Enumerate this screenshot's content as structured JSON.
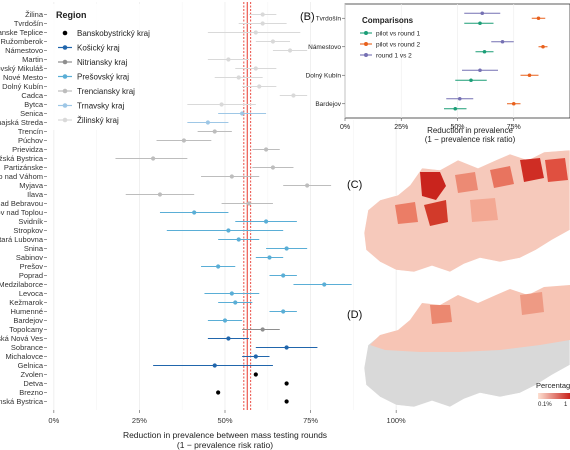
{
  "colors": {
    "Banskobystricky kraj": "#3a3a3a",
    "Košický kraj": "#2166ac",
    "Nitriansky kraj": "#8e8e8e",
    "Prešovský kraj": "#5aaed6",
    "Trenciansky kraj": "#bdbdbd",
    "Trnavsky kraj": "#9ec7e6",
    "Žilinský kraj": "#d9d9d9",
    "pilot vs round 1": "#1b9e77",
    "pilot vs round 2": "#e8601c",
    "round 1 vs 2": "#7570b3",
    "ref_line": "#e8392f"
  },
  "panel_labels": {
    "b": "(B)",
    "c": "(C)",
    "d": "(D)"
  },
  "legend_title": "Region",
  "regions": [
    "Banskobystrický kraj",
    "Košický kraj",
    "Nitriansky kraj",
    "Prešovský kraj",
    "Trenciansky kraj",
    "Trnavsky kraj",
    "Žilinský kraj"
  ],
  "map_legend": {
    "title": "Percentage",
    "ticks": [
      "0.1%",
      "1"
    ]
  },
  "chart_data": [
    {
      "type": "scatter",
      "panel": "A",
      "xlabel": "Reduction in prevalence between mass testing rounds",
      "xlabel2": "(1 − prevalence risk ratio)",
      "xlim": [
        -0.02,
        1.02
      ],
      "xticks": [
        "0%",
        "25%",
        "50%",
        "75%",
        "100%"
      ],
      "xtick_values": [
        0,
        0.25,
        0.5,
        0.75,
        1.0
      ],
      "reference_estimate": 0.565,
      "reference_ci": [
        0.555,
        0.575
      ],
      "points": [
        {
          "label": "Žilina",
          "region": "Žilinský kraj",
          "est": 0.61,
          "lo": 0.57,
          "hi": 0.65
        },
        {
          "label": "Tvrdošín",
          "region": "Žilinský kraj",
          "est": 0.61,
          "lo": 0.54,
          "hi": 0.68
        },
        {
          "label": "anske Teplice",
          "region": "Žilinský kraj",
          "est": 0.59,
          "lo": 0.45,
          "hi": 0.72
        },
        {
          "label": "Ružomberok",
          "region": "Žilinský kraj",
          "est": 0.64,
          "lo": 0.59,
          "hi": 0.69
        },
        {
          "label": "Námestovo",
          "region": "Žilinský kraj",
          "est": 0.69,
          "lo": 0.64,
          "hi": 0.74
        },
        {
          "label": "Martin",
          "region": "Žilinský kraj",
          "est": 0.51,
          "lo": 0.45,
          "hi": 0.57
        },
        {
          "label": "ovský Mikuláš",
          "region": "Žilinský kraj",
          "est": 0.59,
          "lo": 0.53,
          "hi": 0.65
        },
        {
          "label": "Nové Mesto",
          "region": "Žilinský kraj",
          "est": 0.54,
          "lo": 0.47,
          "hi": 0.61
        },
        {
          "label": "Dolný Kubín",
          "region": "Žilinský kraj",
          "est": 0.6,
          "lo": 0.55,
          "hi": 0.65
        },
        {
          "label": "Cadca",
          "region": "Žilinský kraj",
          "est": 0.7,
          "lo": 0.66,
          "hi": 0.74
        },
        {
          "label": "Bytca",
          "region": "Žilinský kraj",
          "est": 0.49,
          "lo": 0.39,
          "hi": 0.59
        },
        {
          "label": "Senica",
          "region": "Trnavsky kraj",
          "est": 0.55,
          "lo": 0.48,
          "hi": 0.62
        },
        {
          "label": "majská Streda",
          "region": "Trnavsky kraj",
          "est": 0.45,
          "lo": 0.39,
          "hi": 0.51
        },
        {
          "label": "Trencín",
          "region": "Trenciansky kraj",
          "est": 0.47,
          "lo": 0.42,
          "hi": 0.52
        },
        {
          "label": "Púchov",
          "region": "Trenciansky kraj",
          "est": 0.38,
          "lo": 0.3,
          "hi": 0.46
        },
        {
          "label": "Prievidza",
          "region": "Trenciansky kraj",
          "est": 0.62,
          "lo": 0.58,
          "hi": 0.66
        },
        {
          "label": "žská Bystrica",
          "region": "Trenciansky kraj",
          "est": 0.29,
          "lo": 0.18,
          "hi": 0.39
        },
        {
          "label": "Partizánske",
          "region": "Trenciansky kraj",
          "est": 0.64,
          "lo": 0.58,
          "hi": 0.7
        },
        {
          "label": "o nad Váhom",
          "region": "Trenciansky kraj",
          "est": 0.52,
          "lo": 0.43,
          "hi": 0.6
        },
        {
          "label": "Myjava",
          "region": "Trenciansky kraj",
          "est": 0.74,
          "lo": 0.67,
          "hi": 0.81
        },
        {
          "label": "Ilava",
          "region": "Trenciansky kraj",
          "est": 0.31,
          "lo": 0.21,
          "hi": 0.41
        },
        {
          "label": "nad Bebravou",
          "region": "Trenciansky kraj",
          "est": 0.57,
          "lo": 0.49,
          "hi": 0.64
        },
        {
          "label": "ov nad Toplou",
          "region": "Prešovský kraj",
          "est": 0.41,
          "lo": 0.31,
          "hi": 0.51
        },
        {
          "label": "Svidník",
          "region": "Prešovský kraj",
          "est": 0.62,
          "lo": 0.53,
          "hi": 0.71
        },
        {
          "label": "Stropkov",
          "region": "Prešovský kraj",
          "est": 0.51,
          "lo": 0.33,
          "hi": 0.67
        },
        {
          "label": "tará Lubovna",
          "region": "Prešovský kraj",
          "est": 0.54,
          "lo": 0.48,
          "hi": 0.6
        },
        {
          "label": "Snina",
          "region": "Prešovský kraj",
          "est": 0.68,
          "lo": 0.62,
          "hi": 0.74
        },
        {
          "label": "Sabinov",
          "region": "Prešovský kraj",
          "est": 0.63,
          "lo": 0.59,
          "hi": 0.67
        },
        {
          "label": "Prešov",
          "region": "Prešovský kraj",
          "est": 0.48,
          "lo": 0.43,
          "hi": 0.53
        },
        {
          "label": "Poprad",
          "region": "Prešovský kraj",
          "est": 0.67,
          "lo": 0.63,
          "hi": 0.71
        },
        {
          "label": "Medzilaborce",
          "region": "Prešovský kraj",
          "est": 0.79,
          "lo": 0.7,
          "hi": 0.87
        },
        {
          "label": "Levoca",
          "region": "Prešovský kraj",
          "est": 0.52,
          "lo": 0.44,
          "hi": 0.6
        },
        {
          "label": "Kežmarok",
          "region": "Prešovský kraj",
          "est": 0.53,
          "lo": 0.48,
          "hi": 0.58
        },
        {
          "label": "Humenné",
          "region": "Prešovský kraj",
          "est": 0.67,
          "lo": 0.63,
          "hi": 0.71
        },
        {
          "label": "Bardejov",
          "region": "Prešovský kraj",
          "est": 0.5,
          "lo": 0.45,
          "hi": 0.55
        },
        {
          "label": "Topolcany",
          "region": "Nitriansky kraj",
          "est": 0.61,
          "lo": 0.55,
          "hi": 0.66
        },
        {
          "label": "ská Nová Ves",
          "region": "Košický kraj",
          "est": 0.51,
          "lo": 0.45,
          "hi": 0.57
        },
        {
          "label": "Sobrance",
          "region": "Košický kraj",
          "est": 0.68,
          "lo": 0.59,
          "hi": 0.77
        },
        {
          "label": "Michalovce",
          "region": "Košický kraj",
          "est": 0.59,
          "lo": 0.55,
          "hi": 0.63
        },
        {
          "label": "Gelnica",
          "region": "Košický kraj",
          "est": 0.47,
          "lo": 0.29,
          "hi": 0.64
        },
        {
          "label": "Zvolen",
          "region": "Banskobystrický kraj",
          "est": 0.59,
          "lo": 0.51,
          "hi": 0.67
        },
        {
          "label": "Detva",
          "region": "Banskobystrický kraj",
          "est": 0.68,
          "lo": 0.61,
          "hi": 0.75
        },
        {
          "label": "Brezno",
          "region": "Banskobystrický kraj",
          "est": 0.48,
          "lo": 0.39,
          "hi": 0.57
        },
        {
          "label": "nská Bystrica",
          "region": "Banskobystrický kraj",
          "est": 0.68,
          "lo": 0.63,
          "hi": 0.73
        }
      ]
    },
    {
      "type": "scatter",
      "panel": "B",
      "xlabel": "Reduction in prevalence",
      "xlabel2": "(1 − prevalence risk ratio)",
      "xlim": [
        0,
        1.0
      ],
      "xticks": [
        "0%",
        "25%",
        "50%",
        "75%"
      ],
      "xtick_values": [
        0,
        0.25,
        0.5,
        0.75
      ],
      "categories": [
        "Tvrdošín",
        "Námestovo",
        "Dolný Kubín",
        "Bardejov"
      ],
      "legend_title": "Comparisons",
      "series": [
        {
          "name": "pilot vs round 1",
          "points": [
            {
              "y": "Tvrdošín",
              "est": 0.6,
              "lo": 0.53,
              "hi": 0.66
            },
            {
              "y": "Námestovo",
              "est": 0.62,
              "lo": 0.58,
              "hi": 0.66
            },
            {
              "y": "Dolný Kubín",
              "est": 0.56,
              "lo": 0.49,
              "hi": 0.63
            },
            {
              "y": "Bardejov",
              "est": 0.49,
              "lo": 0.44,
              "hi": 0.54
            }
          ]
        },
        {
          "name": "pilot vs round 2",
          "points": [
            {
              "y": "Tvrdošín",
              "est": 0.86,
              "lo": 0.83,
              "hi": 0.89
            },
            {
              "y": "Námestovo",
              "est": 0.88,
              "lo": 0.86,
              "hi": 0.9
            },
            {
              "y": "Dolný Kubín",
              "est": 0.82,
              "lo": 0.78,
              "hi": 0.86
            },
            {
              "y": "Bardejov",
              "est": 0.75,
              "lo": 0.72,
              "hi": 0.78
            }
          ]
        },
        {
          "name": "round 1 vs 2",
          "points": [
            {
              "y": "Tvrdošín",
              "est": 0.61,
              "lo": 0.53,
              "hi": 0.69
            },
            {
              "y": "Námestovo",
              "est": 0.7,
              "lo": 0.65,
              "hi": 0.75
            },
            {
              "y": "Dolný Kubín",
              "est": 0.6,
              "lo": 0.52,
              "hi": 0.68
            },
            {
              "y": "Bardejov",
              "est": 0.51,
              "lo": 0.45,
              "hi": 0.57
            }
          ]
        }
      ]
    }
  ]
}
